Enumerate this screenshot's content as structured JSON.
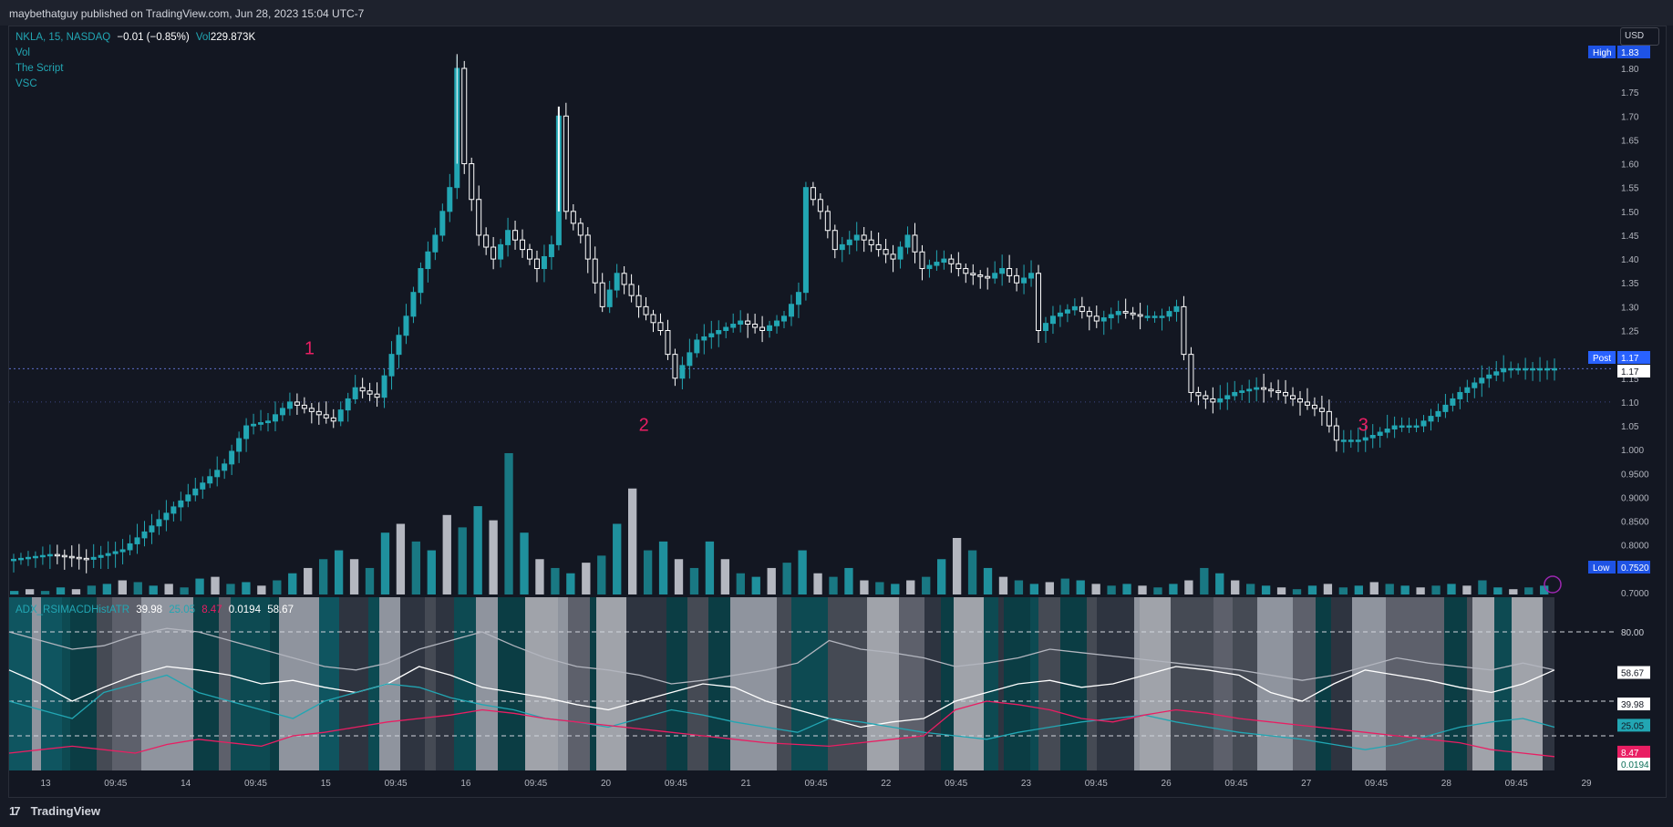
{
  "header": {
    "published": "maybethatguy published on TradingView.com, Jun 28, 2023 15:04 UTC-7"
  },
  "footer": {
    "brand": "TradingView",
    "brand_glyph": "17"
  },
  "currency": "USD",
  "main_legend": {
    "symbol": "NKLA, 15, NASDAQ",
    "change": "−0.01 (−0.85%)",
    "vol_label": "Vol",
    "vol_value": "229.873K",
    "indicators": [
      "Vol",
      "The Script",
      "VSC"
    ]
  },
  "sub_legend": {
    "name": "ADX_RSIMACDHistATR",
    "values": [
      "39.98",
      "25.05",
      "8.47",
      "0.0194",
      "58.67"
    ]
  },
  "colors": {
    "teal": "#22a6b3",
    "pink": "#e91e63",
    "white": "#ffffff",
    "bg": "#131722",
    "darkteal": "#0d4a52",
    "gray": "#8f949e"
  },
  "chart_data": [
    {
      "type": "candlestick",
      "title": "NKLA, 15, NASDAQ",
      "x_tick_labels": [
        "13",
        "09:45",
        "14",
        "09:45",
        "15",
        "09:45",
        "16",
        "09:45",
        "20",
        "09:45",
        "21",
        "09:45",
        "22",
        "09:45",
        "23",
        "09:45",
        "26",
        "09:45",
        "27",
        "09:45",
        "28",
        "09:45",
        "29"
      ],
      "y_ticks": [
        "1.80",
        "1.75",
        "1.70",
        "1.65",
        "1.60",
        "1.55",
        "1.50",
        "1.45",
        "1.40",
        "1.35",
        "1.30",
        "1.25",
        "1.20",
        "1.15",
        "1.10",
        "1.05",
        "1.000",
        "0.9500",
        "0.9000",
        "0.8500",
        "0.8000",
        "0.7500",
        "0.7000"
      ],
      "ylim": [
        0.7,
        1.83
      ],
      "high": {
        "label": "High",
        "value": "1.83"
      },
      "low": {
        "label": "Low",
        "value": "0.7520"
      },
      "post": {
        "label": "Post",
        "value": "1.17"
      },
      "last": "1.17",
      "annotations": [
        "1",
        "2",
        "3"
      ],
      "price_path": [
        [
          0,
          0.77
        ],
        [
          5,
          0.78
        ],
        [
          10,
          0.77
        ],
        [
          15,
          0.79
        ],
        [
          19,
          0.84
        ],
        [
          22,
          0.88
        ],
        [
          26,
          0.93
        ],
        [
          29,
          0.97
        ],
        [
          32,
          1.05
        ],
        [
          35,
          1.06
        ],
        [
          38,
          1.1
        ],
        [
          41,
          1.08
        ],
        [
          44,
          1.06
        ],
        [
          47,
          1.13
        ],
        [
          50,
          1.11
        ],
        [
          52,
          1.2
        ],
        [
          54,
          1.28
        ],
        [
          56,
          1.38
        ],
        [
          58,
          1.45
        ],
        [
          60,
          1.55
        ],
        [
          61,
          1.8
        ],
        [
          62,
          1.6
        ],
        [
          64,
          1.45
        ],
        [
          66,
          1.4
        ],
        [
          68,
          1.46
        ],
        [
          70,
          1.42
        ],
        [
          72,
          1.38
        ],
        [
          74,
          1.43
        ],
        [
          75,
          1.7
        ],
        [
          76,
          1.5
        ],
        [
          78,
          1.45
        ],
        [
          80,
          1.35
        ],
        [
          81,
          1.3
        ],
        [
          83,
          1.37
        ],
        [
          86,
          1.3
        ],
        [
          89,
          1.25
        ],
        [
          91,
          1.15
        ],
        [
          94,
          1.23
        ],
        [
          97,
          1.25
        ],
        [
          100,
          1.27
        ],
        [
          103,
          1.25
        ],
        [
          106,
          1.28
        ],
        [
          108,
          1.33
        ],
        [
          109,
          1.55
        ],
        [
          111,
          1.5
        ],
        [
          113,
          1.42
        ],
        [
          116,
          1.45
        ],
        [
          118,
          1.43
        ],
        [
          121,
          1.4
        ],
        [
          123,
          1.45
        ],
        [
          125,
          1.38
        ],
        [
          128,
          1.4
        ],
        [
          131,
          1.37
        ],
        [
          134,
          1.36
        ],
        [
          136,
          1.38
        ],
        [
          138,
          1.35
        ],
        [
          140,
          1.37
        ],
        [
          141,
          1.25
        ],
        [
          143,
          1.28
        ],
        [
          146,
          1.3
        ],
        [
          149,
          1.27
        ],
        [
          152,
          1.29
        ],
        [
          155,
          1.28
        ],
        [
          158,
          1.28
        ],
        [
          160,
          1.3
        ],
        [
          161,
          1.2
        ],
        [
          162,
          1.12
        ],
        [
          165,
          1.1
        ],
        [
          168,
          1.12
        ],
        [
          171,
          1.13
        ],
        [
          174,
          1.12
        ],
        [
          177,
          1.1
        ],
        [
          180,
          1.08
        ],
        [
          182,
          1.02
        ],
        [
          185,
          1.02
        ],
        [
          187,
          1.03
        ],
        [
          190,
          1.05
        ],
        [
          193,
          1.05
        ],
        [
          196,
          1.08
        ],
        [
          199,
          1.12
        ],
        [
          202,
          1.15
        ],
        [
          205,
          1.17
        ],
        [
          208,
          1.17
        ],
        [
          212,
          1.17
        ]
      ]
    },
    {
      "type": "bar",
      "title": "Vol",
      "values": [
        0.2,
        0.3,
        0.2,
        0.4,
        0.3,
        0.5,
        0.6,
        0.8,
        0.7,
        0.5,
        0.6,
        0.4,
        0.9,
        1.0,
        0.6,
        0.7,
        0.5,
        0.8,
        1.2,
        1.5,
        2.0,
        2.5,
        2.0,
        1.5,
        3.5,
        4.0,
        3.0,
        2.5,
        4.5,
        3.8,
        5.0,
        4.2,
        8.0,
        3.5,
        2.0,
        1.5,
        1.2,
        1.8,
        2.2,
        4.0,
        6.0,
        2.5,
        3.0,
        2.0,
        1.5,
        3.0,
        2.0,
        1.2,
        1.0,
        1.5,
        1.8,
        2.5,
        1.2,
        1.0,
        1.5,
        0.8,
        0.7,
        0.6,
        0.8,
        1.0,
        2.0,
        3.2,
        2.5,
        1.5,
        1.0,
        0.8,
        0.6,
        0.7,
        0.9,
        0.8,
        0.6,
        0.5,
        0.6,
        0.5,
        0.4,
        0.6,
        0.8,
        1.5,
        1.2,
        0.8,
        0.6,
        0.5,
        0.4,
        0.3,
        0.5,
        0.6,
        0.4,
        0.5,
        0.7,
        0.6,
        0.5,
        0.4,
        0.5,
        0.6,
        0.5,
        0.8,
        0.4,
        0.3,
        0.4,
        0.5
      ]
    },
    {
      "type": "line",
      "title": "ADX_RSIMACDHistATR",
      "y_ticks": [
        "80.00",
        "58.67",
        "39.98",
        "25.05",
        "8.47",
        "0.0194"
      ],
      "ylim": [
        0,
        100
      ],
      "series": [
        {
          "name": "",
          "values": [
            58,
            50,
            40,
            48,
            55,
            60,
            58,
            55,
            50,
            52,
            48,
            45,
            50,
            60,
            55,
            48,
            45,
            42,
            38,
            35,
            40,
            45,
            50,
            48,
            40,
            35,
            30,
            25,
            28,
            30,
            40,
            45,
            50,
            52,
            48,
            50,
            55,
            60,
            58,
            55,
            45,
            40,
            50,
            58,
            55,
            52,
            48,
            45,
            50,
            58
          ]
        },
        {
          "name": "",
          "values": [
            80,
            75,
            70,
            72,
            78,
            82,
            80,
            75,
            70,
            65,
            60,
            58,
            62,
            70,
            75,
            80,
            72,
            65,
            60,
            58,
            55,
            50,
            52,
            55,
            58,
            62,
            75,
            70,
            68,
            65,
            60,
            62,
            65,
            70,
            68,
            66,
            64,
            62,
            60,
            58,
            55,
            52,
            55,
            60,
            65,
            62,
            60,
            58,
            62,
            58
          ]
        },
        {
          "name": "",
          "values": [
            40,
            35,
            30,
            45,
            50,
            55,
            45,
            40,
            35,
            30,
            40,
            45,
            50,
            48,
            42,
            38,
            35,
            30,
            28,
            25,
            30,
            35,
            32,
            28,
            25,
            22,
            30,
            28,
            25,
            22,
            20,
            18,
            22,
            25,
            28,
            30,
            32,
            28,
            25,
            22,
            20,
            18,
            15,
            12,
            15,
            20,
            25,
            28,
            30,
            25
          ]
        },
        {
          "name": "",
          "values": [
            10,
            12,
            14,
            12,
            10,
            15,
            18,
            16,
            14,
            20,
            22,
            25,
            28,
            30,
            32,
            35,
            33,
            30,
            28,
            26,
            24,
            22,
            20,
            18,
            16,
            15,
            14,
            16,
            18,
            20,
            35,
            40,
            38,
            35,
            30,
            28,
            32,
            35,
            33,
            30,
            28,
            26,
            24,
            22,
            20,
            18,
            16,
            12,
            10,
            8
          ]
        }
      ]
    }
  ]
}
